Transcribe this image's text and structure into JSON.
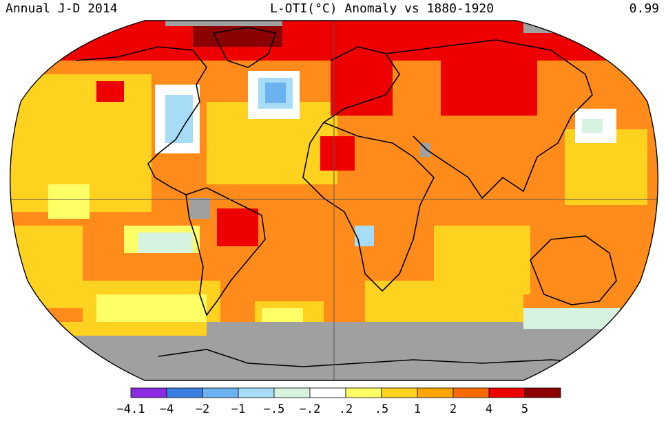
{
  "header": {
    "left": "Annual J-D 2014",
    "center": "L-OTI(°C) Anomaly vs 1880-1920",
    "right": "0.99"
  },
  "legend": {
    "bins": [
      {
        "color": "#8a2be2"
      },
      {
        "color": "#3a7fe0"
      },
      {
        "color": "#6cb2f0"
      },
      {
        "color": "#a6dcf5"
      },
      {
        "color": "#d8f2e0"
      },
      {
        "color": "#ffffff"
      },
      {
        "color": "#ffff66"
      },
      {
        "color": "#ffd21f"
      },
      {
        "color": "#ffa500"
      },
      {
        "color": "#ff6a00"
      },
      {
        "color": "#ee0000"
      },
      {
        "color": "#8b0000"
      }
    ],
    "labels": [
      "−4.1",
      "−4",
      "−2",
      "−1",
      "−.5",
      "−.2",
      ".2",
      ".5",
      "1",
      "2",
      "4",
      "5"
    ]
  },
  "map": {
    "projection": "Robinson",
    "ocean_color": "#ff8c1a",
    "missing_color": "#a0a0a0",
    "coast_color": "#000000",
    "gridline_color": "#555555"
  }
}
